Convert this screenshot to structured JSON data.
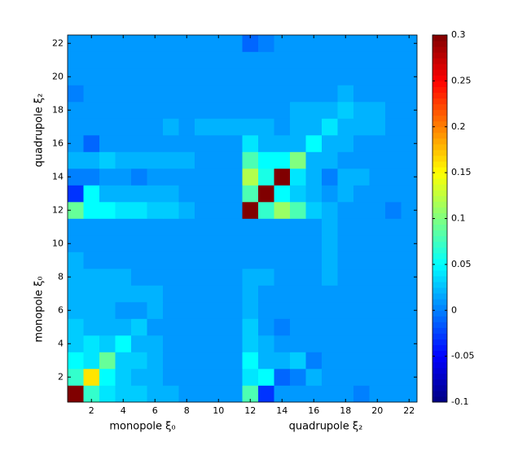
{
  "chart_data": {
    "type": "heatmap",
    "x": [
      1,
      2,
      3,
      4,
      5,
      6,
      7,
      8,
      9,
      10,
      11,
      12,
      13,
      14,
      15,
      16,
      17,
      18,
      19,
      20,
      21,
      22
    ],
    "y": [
      1,
      2,
      3,
      4,
      5,
      6,
      7,
      8,
      9,
      10,
      11,
      12,
      13,
      14,
      15,
      16,
      17,
      18,
      19,
      20,
      21,
      22
    ],
    "xlim": [
      0.5,
      22.5
    ],
    "ylim": [
      0.5,
      22.5
    ],
    "xticks": [
      2,
      4,
      6,
      8,
      10,
      12,
      14,
      16,
      18,
      20,
      22
    ],
    "yticks": [
      2,
      4,
      6,
      8,
      10,
      12,
      14,
      16,
      18,
      20,
      22
    ],
    "xlabels": [
      "monopole ξ₀",
      "quadrupole ξ₂"
    ],
    "ylabels": [
      "monopole ξ₀",
      "quadrupole ξ₂"
    ],
    "colormap": "jet",
    "clim": [
      -0.1,
      0.3
    ],
    "cticks": [
      -0.1,
      -0.05,
      0,
      0.05,
      0.1,
      0.15,
      0.2,
      0.25,
      0.3
    ],
    "z": [
      [
        0.3,
        0.07,
        0.04,
        0.03,
        0.03,
        0.02,
        0.02,
        0.01,
        0.01,
        0.01,
        0.01,
        0.08,
        -0.03,
        0.01,
        0.01,
        0.01,
        0.01,
        0.01,
        0.0,
        0.01,
        0.01,
        0.01
      ],
      [
        0.07,
        0.16,
        0.05,
        0.03,
        0.02,
        0.02,
        0.01,
        0.01,
        0.01,
        0.01,
        0.01,
        0.04,
        0.05,
        -0.01,
        0.0,
        0.02,
        0.01,
        0.01,
        0.01,
        0.01,
        0.01,
        0.01
      ],
      [
        0.05,
        0.04,
        0.09,
        0.03,
        0.03,
        0.02,
        0.01,
        0.01,
        0.01,
        0.01,
        0.01,
        0.05,
        0.02,
        0.02,
        0.03,
        0.0,
        0.01,
        0.01,
        0.01,
        0.01,
        0.01,
        0.01
      ],
      [
        0.03,
        0.04,
        0.03,
        0.05,
        0.02,
        0.02,
        0.01,
        0.01,
        0.01,
        0.01,
        0.01,
        0.03,
        0.02,
        0.01,
        0.01,
        0.01,
        0.01,
        0.01,
        0.01,
        0.01,
        0.01,
        0.01
      ],
      [
        0.03,
        0.02,
        0.02,
        0.02,
        0.03,
        0.01,
        0.01,
        0.01,
        0.01,
        0.01,
        0.01,
        0.03,
        0.01,
        0.0,
        0.01,
        0.01,
        0.01,
        0.01,
        0.01,
        0.01,
        0.01,
        0.01
      ],
      [
        0.02,
        0.02,
        0.02,
        0.01,
        0.01,
        0.02,
        0.01,
        0.01,
        0.01,
        0.01,
        0.01,
        0.02,
        0.01,
        0.01,
        0.01,
        0.01,
        0.01,
        0.01,
        0.01,
        0.01,
        0.01,
        0.01
      ],
      [
        0.02,
        0.02,
        0.02,
        0.02,
        0.02,
        0.02,
        0.01,
        0.01,
        0.01,
        0.01,
        0.01,
        0.02,
        0.01,
        0.01,
        0.01,
        0.01,
        0.01,
        0.01,
        0.01,
        0.01,
        0.01,
        0.01
      ],
      [
        0.02,
        0.02,
        0.02,
        0.02,
        0.01,
        0.01,
        0.01,
        0.01,
        0.01,
        0.01,
        0.01,
        0.02,
        0.02,
        0.01,
        0.01,
        0.01,
        0.02,
        0.01,
        0.01,
        0.01,
        0.01,
        0.01
      ],
      [
        0.02,
        0.01,
        0.01,
        0.01,
        0.01,
        0.01,
        0.01,
        0.01,
        0.01,
        0.01,
        0.01,
        0.01,
        0.01,
        0.01,
        0.01,
        0.01,
        0.02,
        0.01,
        0.01,
        0.01,
        0.01,
        0.01
      ],
      [
        0.01,
        0.01,
        0.01,
        0.01,
        0.01,
        0.01,
        0.01,
        0.01,
        0.01,
        0.01,
        0.01,
        0.01,
        0.01,
        0.01,
        0.01,
        0.01,
        0.02,
        0.01,
        0.01,
        0.01,
        0.01,
        0.01
      ],
      [
        0.01,
        0.01,
        0.01,
        0.01,
        0.01,
        0.01,
        0.01,
        0.01,
        0.01,
        0.01,
        0.01,
        0.01,
        0.01,
        0.01,
        0.01,
        0.01,
        0.02,
        0.01,
        0.01,
        0.01,
        0.01,
        0.01
      ],
      [
        0.09,
        0.05,
        0.05,
        0.04,
        0.04,
        0.03,
        0.03,
        0.02,
        0.01,
        0.01,
        0.01,
        0.3,
        0.07,
        0.11,
        0.08,
        0.03,
        0.02,
        0.01,
        0.01,
        0.01,
        0.0,
        0.01
      ],
      [
        -0.03,
        0.05,
        0.02,
        0.02,
        0.02,
        0.02,
        0.02,
        0.01,
        0.01,
        0.01,
        0.01,
        0.08,
        0.3,
        0.05,
        0.03,
        0.02,
        0.01,
        0.02,
        0.01,
        0.01,
        0.01,
        0.01
      ],
      [
        0.0,
        0.0,
        0.01,
        0.01,
        0.0,
        0.01,
        0.01,
        0.01,
        0.01,
        0.01,
        0.01,
        0.12,
        0.06,
        0.3,
        0.04,
        0.02,
        0.0,
        0.02,
        0.02,
        0.01,
        0.01,
        0.01
      ],
      [
        0.02,
        0.02,
        0.03,
        0.02,
        0.02,
        0.02,
        0.02,
        0.02,
        0.01,
        0.01,
        0.01,
        0.08,
        0.05,
        0.05,
        0.1,
        0.02,
        0.02,
        0.01,
        0.01,
        0.01,
        0.01,
        0.01
      ],
      [
        0.01,
        -0.01,
        0.01,
        0.01,
        0.01,
        0.01,
        0.01,
        0.01,
        0.01,
        0.01,
        0.01,
        0.04,
        0.02,
        0.02,
        0.02,
        0.05,
        0.02,
        0.02,
        0.01,
        0.01,
        0.01,
        0.01
      ],
      [
        0.01,
        0.01,
        0.01,
        0.01,
        0.01,
        0.01,
        0.02,
        0.01,
        0.02,
        0.02,
        0.02,
        0.02,
        0.02,
        0.01,
        0.02,
        0.02,
        0.04,
        0.02,
        0.02,
        0.02,
        0.01,
        0.01
      ],
      [
        0.01,
        0.01,
        0.01,
        0.01,
        0.01,
        0.01,
        0.01,
        0.01,
        0.01,
        0.01,
        0.01,
        0.01,
        0.01,
        0.01,
        0.02,
        0.02,
        0.02,
        0.03,
        0.02,
        0.02,
        0.01,
        0.01
      ],
      [
        0.0,
        0.01,
        0.01,
        0.01,
        0.01,
        0.01,
        0.01,
        0.01,
        0.01,
        0.01,
        0.01,
        0.01,
        0.01,
        0.01,
        0.01,
        0.01,
        0.01,
        0.02,
        0.01,
        0.01,
        0.01,
        0.01
      ],
      [
        0.01,
        0.01,
        0.01,
        0.01,
        0.01,
        0.01,
        0.01,
        0.01,
        0.01,
        0.01,
        0.01,
        0.01,
        0.01,
        0.01,
        0.01,
        0.01,
        0.01,
        0.01,
        0.01,
        0.01,
        0.01,
        0.01
      ],
      [
        0.01,
        0.01,
        0.01,
        0.01,
        0.01,
        0.01,
        0.01,
        0.01,
        0.01,
        0.01,
        0.01,
        0.01,
        0.01,
        0.01,
        0.01,
        0.01,
        0.01,
        0.01,
        0.01,
        0.01,
        0.01,
        0.01
      ],
      [
        0.01,
        0.01,
        0.01,
        0.01,
        0.01,
        0.01,
        0.01,
        0.01,
        0.01,
        0.01,
        0.01,
        -0.01,
        0.0,
        0.01,
        0.01,
        0.01,
        0.01,
        0.01,
        0.01,
        0.01,
        0.01,
        0.01
      ]
    ]
  }
}
